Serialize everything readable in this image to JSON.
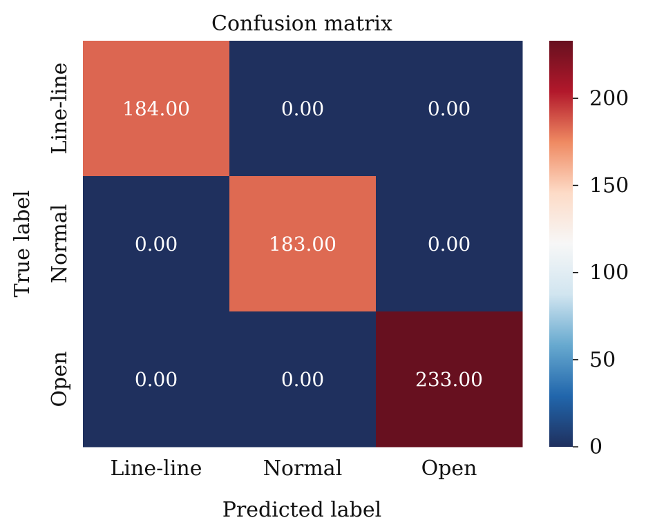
{
  "chart_data": {
    "type": "heatmap",
    "title": "Confusion matrix",
    "xlabel": "Predicted label",
    "ylabel": "True label",
    "x_categories": [
      "Line-line",
      "Normal",
      "Open"
    ],
    "y_categories": [
      "Line-line",
      "Normal",
      "Open"
    ],
    "values": [
      [
        184,
        0,
        0
      ],
      [
        0,
        183,
        0
      ],
      [
        0,
        0,
        233
      ]
    ],
    "cell_labels": [
      [
        "184.00",
        "0.00",
        "0.00"
      ],
      [
        "0.00",
        "183.00",
        "0.00"
      ],
      [
        "0.00",
        "0.00",
        "233.00"
      ]
    ],
    "colorbar": {
      "min": 0,
      "max": 233,
      "ticks": [
        0,
        50,
        100,
        150,
        200
      ],
      "tick_labels": [
        "0",
        "50",
        "100",
        "150",
        "200"
      ],
      "colormap": "RdBu_r",
      "stops": [
        "#1f305e",
        "#2166ac",
        "#67a9cf",
        "#d1e5f0",
        "#f7f7f7",
        "#fddbc7",
        "#ef8a62",
        "#b2182b",
        "#67101f"
      ]
    }
  }
}
